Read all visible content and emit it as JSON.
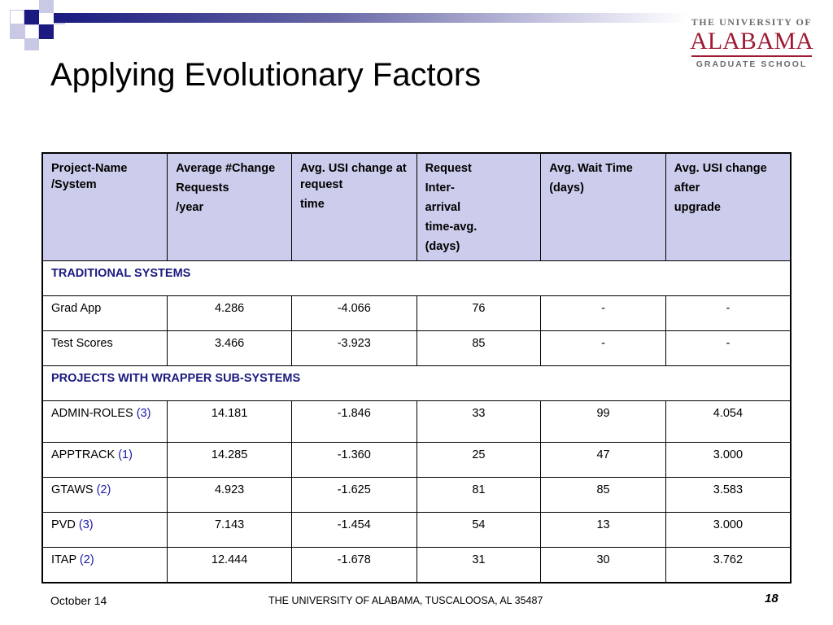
{
  "slide": {
    "title": "Applying Evolutionary Factors"
  },
  "logo": {
    "line1": "THE UNIVERSITY OF",
    "line2": "ALABAMA",
    "line3": "GRADUATE SCHOOL"
  },
  "table": {
    "headers": [
      [
        "Project-Name /System"
      ],
      [
        "Average #Change",
        "Requests",
        "/year"
      ],
      [
        "Avg. USI change at request",
        "time"
      ],
      [
        "Request",
        "Inter-",
        "arrival",
        "time-avg.",
        "(days)"
      ],
      [
        "Avg. Wait Time",
        "(days)"
      ],
      [
        "Avg. USI change",
        "after",
        "upgrade"
      ]
    ],
    "sections": [
      {
        "label": "TRADITIONAL SYSTEMS",
        "rows": [
          {
            "name": "Grad App",
            "ref": "",
            "values": [
              "4.286",
              "-4.066",
              "76",
              "-",
              "-"
            ]
          },
          {
            "name": "Test Scores",
            "ref": "",
            "values": [
              "3.466",
              "-3.923",
              "85",
              "-",
              "-"
            ]
          }
        ]
      },
      {
        "label": "PROJECTS WITH WRAPPER SUB-SYSTEMS",
        "rows": [
          {
            "name": "ADMIN-ROLES",
            "ref": "(3)",
            "values": [
              "14.181",
              "-1.846",
              "33",
              "99",
              "4.054"
            ]
          },
          {
            "name": "APPTRACK",
            "ref": "(1)",
            "values": [
              "14.285",
              "-1.360",
              "25",
              "47",
              "3.000"
            ]
          },
          {
            "name": "GTAWS",
            "ref": "(2)",
            "values": [
              "4.923",
              "-1.625",
              "81",
              "85",
              "3.583"
            ]
          },
          {
            "name": "PVD",
            "ref": "(3)",
            "values": [
              "7.143",
              "-1.454",
              "54",
              "13",
              "3.000"
            ]
          },
          {
            "name": "ITAP",
            "ref": "(2)",
            "values": [
              "12.444",
              "-1.678",
              "31",
              "30",
              "3.762"
            ]
          }
        ]
      }
    ]
  },
  "footer": {
    "date": "October 14",
    "institution": "THE UNIVERSITY OF ALABAMA, TUSCALOOSA, AL 35487",
    "page": "18"
  }
}
